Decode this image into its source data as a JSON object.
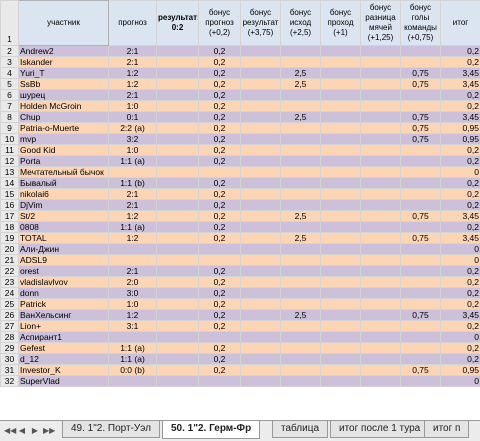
{
  "header": {
    "row_number": "1",
    "name": "участник",
    "forecast": "прогноз",
    "result": "результат: 0:2",
    "bonus_forecast": "бонус прогноз (+0,2)",
    "bonus_result": "бонус результат (+3,75)",
    "bonus_outcome": "бонус исход (+2,5)",
    "bonus_pass": "бонус проход (+1)",
    "bonus_goal_diff": "бонус разница мячей (+1,25)",
    "bonus_team_goals": "бонус голы команды (+0,75)",
    "total": "итог"
  },
  "rows": [
    {
      "n": "2",
      "name": "Andrew2",
      "pred": "2:1",
      "bp": "0,2",
      "br": "",
      "bo": "",
      "bpass": "",
      "bd": "",
      "bg": "",
      "tot": "0,2"
    },
    {
      "n": "3",
      "name": "Iskander",
      "pred": "2:1",
      "bp": "0,2",
      "br": "",
      "bo": "",
      "bpass": "",
      "bd": "",
      "bg": "",
      "tot": "0,2"
    },
    {
      "n": "4",
      "name": "Yuri_T",
      "pred": "1:2",
      "bp": "0,2",
      "br": "",
      "bo": "2,5",
      "bpass": "",
      "bd": "",
      "bg": "0,75",
      "tot": "3,45"
    },
    {
      "n": "5",
      "name": "SsBb",
      "pred": "1:2",
      "bp": "0,2",
      "br": "",
      "bo": "2,5",
      "bpass": "",
      "bd": "",
      "bg": "0,75",
      "tot": "3,45"
    },
    {
      "n": "6",
      "name": "шурец",
      "pred": "2:1",
      "bp": "0,2",
      "br": "",
      "bo": "",
      "bpass": "",
      "bd": "",
      "bg": "",
      "tot": "0,2"
    },
    {
      "n": "7",
      "name": "Holden McGroin",
      "pred": "1:0",
      "bp": "0,2",
      "br": "",
      "bo": "",
      "bpass": "",
      "bd": "",
      "bg": "",
      "tot": "0,2"
    },
    {
      "n": "8",
      "name": "Chup",
      "pred": "0:1",
      "bp": "0,2",
      "br": "",
      "bo": "2,5",
      "bpass": "",
      "bd": "",
      "bg": "0,75",
      "tot": "3,45"
    },
    {
      "n": "9",
      "name": "Patria-o-Muerte",
      "pred": "2:2 (a)",
      "bp": "0,2",
      "br": "",
      "bo": "",
      "bpass": "",
      "bd": "",
      "bg": "0,75",
      "tot": "0,95"
    },
    {
      "n": "10",
      "name": "mvp",
      "pred": "3:2",
      "bp": "0,2",
      "br": "",
      "bo": "",
      "bpass": "",
      "bd": "",
      "bg": "0,75",
      "tot": "0,95"
    },
    {
      "n": "11",
      "name": "Good Kid",
      "pred": "1:0",
      "bp": "0,2",
      "br": "",
      "bo": "",
      "bpass": "",
      "bd": "",
      "bg": "",
      "tot": "0,2"
    },
    {
      "n": "12",
      "name": "Porta",
      "pred": "1:1 (a)",
      "bp": "0,2",
      "br": "",
      "bo": "",
      "bpass": "",
      "bd": "",
      "bg": "",
      "tot": "0,2"
    },
    {
      "n": "13",
      "name": "Мечтательный бычок",
      "pred": "",
      "bp": "",
      "br": "",
      "bo": "",
      "bpass": "",
      "bd": "",
      "bg": "",
      "tot": "0"
    },
    {
      "n": "14",
      "name": "Бывалый",
      "pred": "1:1 (b)",
      "bp": "0,2",
      "br": "",
      "bo": "",
      "bpass": "",
      "bd": "",
      "bg": "",
      "tot": "0,2"
    },
    {
      "n": "15",
      "name": "nikolai6",
      "pred": "2:1",
      "bp": "0,2",
      "br": "",
      "bo": "",
      "bpass": "",
      "bd": "",
      "bg": "",
      "tot": "0,2"
    },
    {
      "n": "16",
      "name": "DjVim",
      "pred": "2:1",
      "bp": "0,2",
      "br": "",
      "bo": "",
      "bpass": "",
      "bd": "",
      "bg": "",
      "tot": "0,2"
    },
    {
      "n": "17",
      "name": "St/2",
      "pred": "1:2",
      "bp": "0,2",
      "br": "",
      "bo": "2,5",
      "bpass": "",
      "bd": "",
      "bg": "0,75",
      "tot": "3,45"
    },
    {
      "n": "18",
      "name": "0808",
      "pred": "1:1 (a)",
      "bp": "0,2",
      "br": "",
      "bo": "",
      "bpass": "",
      "bd": "",
      "bg": "",
      "tot": "0,2"
    },
    {
      "n": "19",
      "name": "TOTAL",
      "pred": "1:2",
      "bp": "0,2",
      "br": "",
      "bo": "2,5",
      "bpass": "",
      "bd": "",
      "bg": "0,75",
      "tot": "3,45"
    },
    {
      "n": "20",
      "name": "Али-Джин",
      "pred": "",
      "bp": "",
      "br": "",
      "bo": "",
      "bpass": "",
      "bd": "",
      "bg": "",
      "tot": "0"
    },
    {
      "n": "21",
      "name": "ADSL9",
      "pred": "",
      "bp": "",
      "br": "",
      "bo": "",
      "bpass": "",
      "bd": "",
      "bg": "",
      "tot": "0"
    },
    {
      "n": "22",
      "name": "orest",
      "pred": "2:1",
      "bp": "0,2",
      "br": "",
      "bo": "",
      "bpass": "",
      "bd": "",
      "bg": "",
      "tot": "0,2"
    },
    {
      "n": "23",
      "name": "vladislavlvov",
      "pred": "2:0",
      "bp": "0,2",
      "br": "",
      "bo": "",
      "bpass": "",
      "bd": "",
      "bg": "",
      "tot": "0,2"
    },
    {
      "n": "24",
      "name": "donn",
      "pred": "3:0",
      "bp": "0,2",
      "br": "",
      "bo": "",
      "bpass": "",
      "bd": "",
      "bg": "",
      "tot": "0,2"
    },
    {
      "n": "25",
      "name": "Patrick",
      "pred": "1:0",
      "bp": "0,2",
      "br": "",
      "bo": "",
      "bpass": "",
      "bd": "",
      "bg": "",
      "tot": "0,2"
    },
    {
      "n": "26",
      "name": "ВанХельсинг",
      "pred": "1:2",
      "bp": "0,2",
      "br": "",
      "bo": "2,5",
      "bpass": "",
      "bd": "",
      "bg": "0,75",
      "tot": "3,45"
    },
    {
      "n": "27",
      "name": "Lion+",
      "pred": "3:1",
      "bp": "0,2",
      "br": "",
      "bo": "",
      "bpass": "",
      "bd": "",
      "bg": "",
      "tot": "0,2"
    },
    {
      "n": "28",
      "name": "Аспирант1",
      "pred": "",
      "bp": "",
      "br": "",
      "bo": "",
      "bpass": "",
      "bd": "",
      "bg": "",
      "tot": "0"
    },
    {
      "n": "29",
      "name": "Gefest",
      "pred": "1:1 (a)",
      "bp": "0,2",
      "br": "",
      "bo": "",
      "bpass": "",
      "bd": "",
      "bg": "",
      "tot": "0,2"
    },
    {
      "n": "30",
      "name": "d_12",
      "pred": "1:1 (a)",
      "bp": "0,2",
      "br": "",
      "bo": "",
      "bpass": "",
      "bd": "",
      "bg": "",
      "tot": "0,2"
    },
    {
      "n": "31",
      "name": "Investor_K",
      "pred": "0:0 (b)",
      "bp": "0,2",
      "br": "",
      "bo": "",
      "bpass": "",
      "bd": "",
      "bg": "0,75",
      "tot": "0,95"
    },
    {
      "n": "32",
      "name": "SuperVlad",
      "pred": "",
      "bp": "",
      "br": "",
      "bo": "",
      "bpass": "",
      "bd": "",
      "bg": "",
      "tot": "0"
    }
  ],
  "tabs": {
    "nav": [
      "◀◀",
      "◀",
      "▶",
      "▶▶"
    ],
    "items": [
      {
        "label": "49. 1\"2. Порт-Уэл",
        "active": false
      },
      {
        "label": "50. 1\"2. Герм-Фр",
        "active": true
      },
      {
        "label": "таблица",
        "active": false
      },
      {
        "label": "итог после 1 тура",
        "active": false
      },
      {
        "label": "итог п",
        "active": false
      }
    ]
  },
  "colors": {
    "peach": "#fcd5b4",
    "lavender": "#ccc0da",
    "header": "#dbe5f1"
  }
}
